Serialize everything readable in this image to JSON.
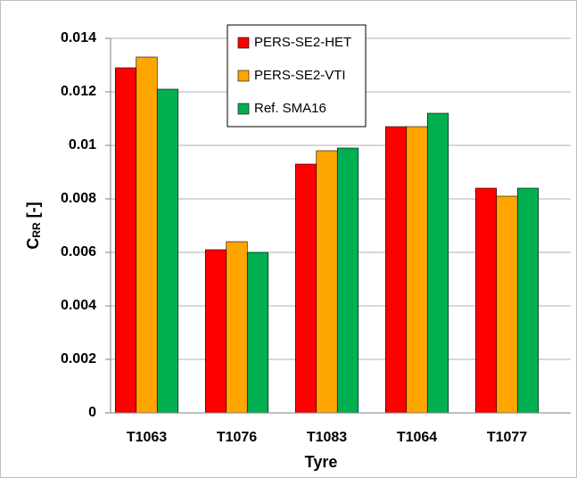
{
  "chart_data": {
    "type": "bar",
    "x_label": "Tyre",
    "y_label": {
      "main": "C",
      "subscript": "RR",
      "suffix": " [-]"
    },
    "categories": [
      "T1063",
      "T1076",
      "T1083",
      "T1064",
      "T1077"
    ],
    "series": [
      {
        "name": "PERS-SE2-HET",
        "color": "#ff0000",
        "values": [
          0.0129,
          0.0061,
          0.0093,
          0.0107,
          0.0084
        ]
      },
      {
        "name": "PERS-SE2-VTI",
        "color": "#ffa500",
        "values": [
          0.0133,
          0.0064,
          0.0098,
          0.0107,
          0.0081
        ]
      },
      {
        "name": "Ref. SMA16",
        "color": "#00b050",
        "values": [
          0.0121,
          0.006,
          0.0099,
          0.0112,
          0.0084
        ]
      }
    ],
    "ylim": [
      0,
      0.014
    ],
    "yticks": [
      0,
      0.002,
      0.004,
      0.006,
      0.008,
      0.01,
      0.012,
      0.014
    ],
    "grid": true,
    "legend": "top"
  }
}
